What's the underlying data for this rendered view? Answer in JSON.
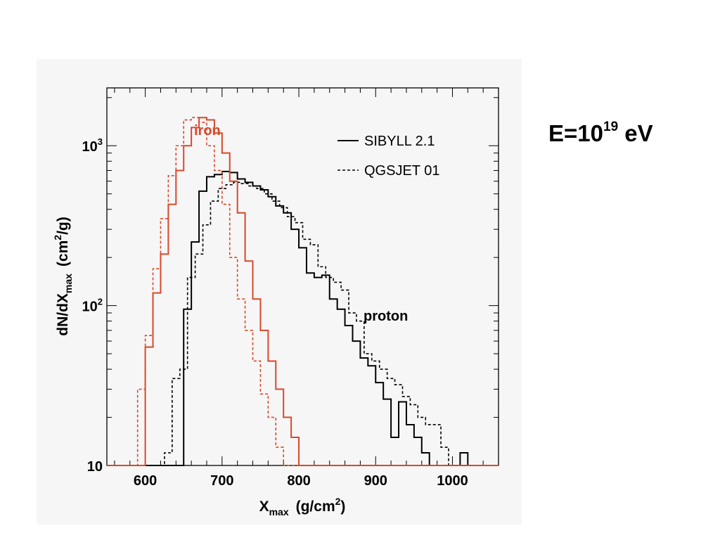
{
  "chart_data": {
    "type": "line",
    "title": "E=10^19 eV",
    "title_parts": {
      "prefix": "E=10",
      "exponent": "19",
      "suffix": " eV"
    },
    "xlabel": {
      "main": "X",
      "sub": "max",
      "units_pre": "(g/cm",
      "units_sup": "2",
      "units_post": ")"
    },
    "ylabel": {
      "main": "dN/dX",
      "sub": "max",
      "units_pre": "(cm",
      "units_sup": "2",
      "units_post": "/g)"
    },
    "xlim": [
      550,
      1060
    ],
    "ylim": [
      10,
      2300
    ],
    "yscale": "log",
    "x_ticks": [
      600,
      700,
      800,
      900,
      1000
    ],
    "x_tick_labels": [
      "600",
      "700",
      "800",
      "900",
      "1000"
    ],
    "y_ticks": [
      10,
      100,
      1000
    ],
    "y_tick_labels": [
      {
        "base": "10",
        "exp": ""
      },
      {
        "base": "10",
        "exp": "2"
      },
      {
        "base": "10",
        "exp": "3"
      }
    ],
    "bin_width": 10,
    "colors": {
      "proton": "#000000",
      "iron": "#d9482a",
      "background": "#f6f6f6"
    },
    "legend": {
      "position": "top-right",
      "entries": [
        {
          "label": "SIBYLL 2.1",
          "style": "solid"
        },
        {
          "label": "QGSJET 01",
          "style": "dashed"
        }
      ]
    },
    "annotations": {
      "iron": "iron",
      "proton": "proton"
    },
    "series": [
      {
        "model": "SIBYLL 2.1",
        "group": "proton",
        "style": "solid",
        "x_start": 640,
        "values": [
          10,
          95,
          250,
          520,
          640,
          660,
          690,
          680,
          620,
          590,
          560,
          530,
          480,
          420,
          380,
          300,
          230,
          160,
          150,
          155,
          110,
          95,
          75,
          60,
          47,
          42,
          33,
          26,
          15,
          25,
          18,
          15,
          12,
          10,
          10,
          10,
          10,
          12,
          10,
          10
        ]
      },
      {
        "model": "QGSJET 01",
        "group": "proton",
        "style": "dashed",
        "x_start": 625,
        "values": [
          12,
          35,
          40,
          150,
          210,
          320,
          450,
          540,
          570,
          590,
          580,
          560,
          540,
          500,
          450,
          410,
          360,
          330,
          260,
          240,
          175,
          150,
          140,
          125,
          90,
          80,
          50,
          45,
          40,
          35,
          32,
          27,
          24,
          20,
          18,
          18,
          13,
          10,
          10,
          10
        ]
      },
      {
        "model": "SIBYLL 2.1",
        "group": "iron",
        "style": "solid",
        "x_start": 590,
        "values": [
          10,
          55,
          120,
          210,
          430,
          700,
          1000,
          1300,
          1500,
          1450,
          1200,
          900,
          600,
          380,
          190,
          110,
          70,
          45,
          30,
          20,
          15,
          10
        ]
      },
      {
        "model": "QGSJET 01",
        "group": "iron",
        "style": "dashed",
        "x_start": 580,
        "values": [
          10,
          30,
          65,
          170,
          350,
          650,
          1000,
          1450,
          1500,
          1400,
          1000,
          700,
          430,
          200,
          110,
          70,
          45,
          28,
          20,
          13,
          10,
          10
        ]
      }
    ]
  }
}
